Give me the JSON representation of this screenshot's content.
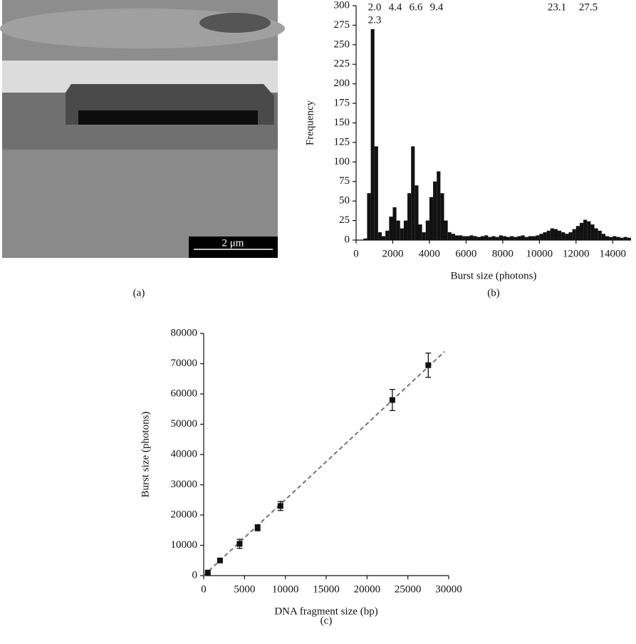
{
  "panel_labels": [
    "(a)",
    "(b)",
    "(c)"
  ],
  "image": {
    "scale_bar": "2 μm"
  },
  "chart_data": [
    {
      "type": "histogram",
      "ylabel": "Frequency",
      "xlabel": "Burst size (photons)",
      "color": "#111111",
      "annotations": [
        "2.0",
        "4.4",
        "6.6",
        "9.4",
        "23.1",
        "27.5",
        "2.3"
      ],
      "bins": [
        0,
        200,
        400,
        600,
        800,
        1000,
        1200,
        1400,
        1600,
        1800,
        2000,
        2200,
        2400,
        2600,
        2800,
        3000,
        3200,
        3400,
        3600,
        3800,
        4000,
        4200,
        4400,
        4600,
        4800,
        5000,
        5200,
        5400,
        5600,
        5800,
        6000,
        6200,
        6400,
        6600,
        6800,
        7000,
        7200,
        7400,
        7600,
        7800,
        8000,
        8200,
        8400,
        8600,
        8800,
        9000,
        9200,
        9400,
        9600,
        9800,
        10000,
        10200,
        10400,
        10600,
        10800,
        11000,
        11200,
        11400,
        11600,
        11800,
        12000,
        12200,
        12400,
        12600,
        12800,
        13000,
        13200,
        13400,
        13600,
        13800,
        14000,
        14200,
        14400,
        14600,
        14800,
        15000
      ],
      "values": [
        0,
        0,
        2,
        60,
        270,
        120,
        10,
        5,
        12,
        30,
        42,
        25,
        15,
        25,
        60,
        120,
        70,
        20,
        10,
        25,
        55,
        75,
        88,
        60,
        25,
        10,
        8,
        6,
        6,
        5,
        5,
        6,
        5,
        4,
        5,
        6,
        4,
        5,
        4,
        6,
        5,
        4,
        5,
        4,
        5,
        6,
        4,
        5,
        5,
        6,
        8,
        10,
        12,
        15,
        14,
        12,
        10,
        8,
        10,
        14,
        18,
        22,
        26,
        24,
        20,
        15,
        12,
        8,
        5,
        4,
        5,
        4,
        3,
        4,
        3
      ],
      "xlim": [
        0,
        15000
      ],
      "xticks": [
        0,
        2000,
        4000,
        6000,
        8000,
        10000,
        12000,
        14000
      ],
      "ylim": [
        0,
        300
      ],
      "yticks": [
        0,
        25,
        50,
        75,
        100,
        125,
        150,
        175,
        200,
        225,
        250,
        275,
        300
      ]
    },
    {
      "type": "scatter",
      "ylabel": "Burst size (photons)",
      "xlabel": "DNA fragment size (bp)",
      "color": "#111111",
      "x": [
        500,
        2000,
        4400,
        6600,
        9400,
        23100,
        27500
      ],
      "values": [
        1000,
        5000,
        10500,
        15800,
        23000,
        58000,
        69500
      ],
      "errors": [
        500,
        700,
        1500,
        1000,
        1500,
        3500,
        4000
      ],
      "fit": {
        "x": [
          0,
          29500
        ],
        "y": [
          0,
          74000
        ],
        "color": "#777777"
      },
      "xlim": [
        0,
        30000
      ],
      "xticks": [
        0,
        5000,
        10000,
        15000,
        20000,
        25000,
        30000
      ],
      "ylim": [
        0,
        80000
      ],
      "yticks": [
        0,
        10000,
        20000,
        30000,
        40000,
        50000,
        60000,
        70000,
        80000
      ]
    }
  ]
}
